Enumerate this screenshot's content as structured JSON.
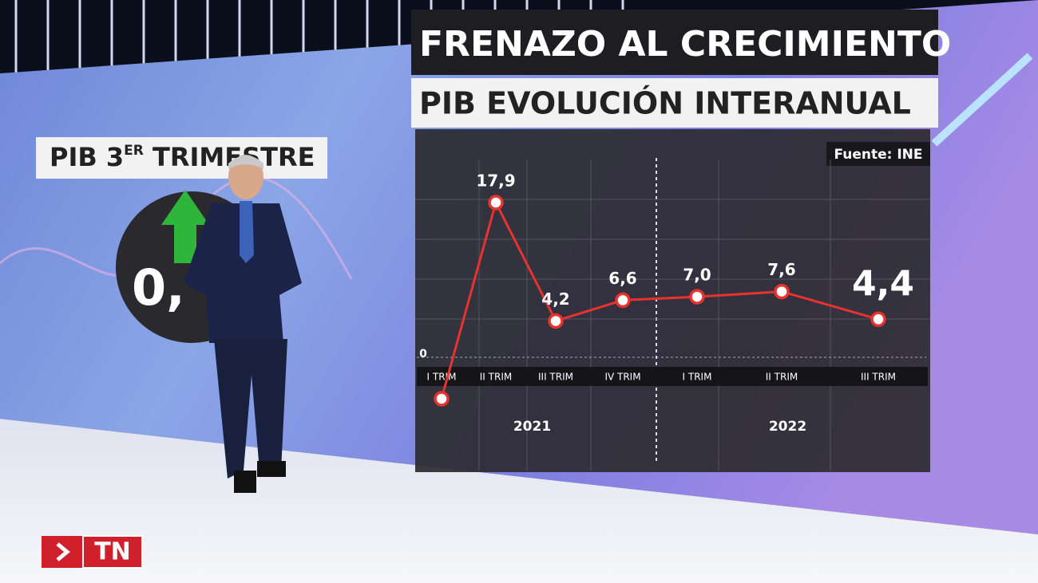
{
  "chart_data": {
    "type": "line",
    "title": "FRENAZO AL CRECIMIENTO",
    "subtitle": "PIB EVOLUCIÓN INTERANUAL",
    "source": "Fuente: INE",
    "categories": [
      "I TRIM",
      "II TRIM",
      "III TRIM",
      "IV TRIM",
      "I TRIM",
      "II TRIM",
      "III TRIM"
    ],
    "groups": [
      {
        "label": "2021",
        "from": 0,
        "to": 3
      },
      {
        "label": "2022",
        "from": 4,
        "to": 6
      }
    ],
    "values": [
      -4.8,
      17.9,
      4.2,
      6.6,
      7.0,
      7.6,
      4.4
    ],
    "value_labels": [
      null,
      "17,9",
      "4,2",
      "6,6",
      "7,0",
      "7,6",
      "4,4"
    ],
    "color": "#e8322e",
    "ylim": [
      -6,
      22
    ],
    "yticks": [
      0
    ],
    "grid": true
  },
  "side_panel": {
    "label_start": "PIB 3",
    "label_sup": "ER",
    "label_end": " TRIMESTRE",
    "value": "0,"
  },
  "logo": {
    "text": "TN"
  }
}
